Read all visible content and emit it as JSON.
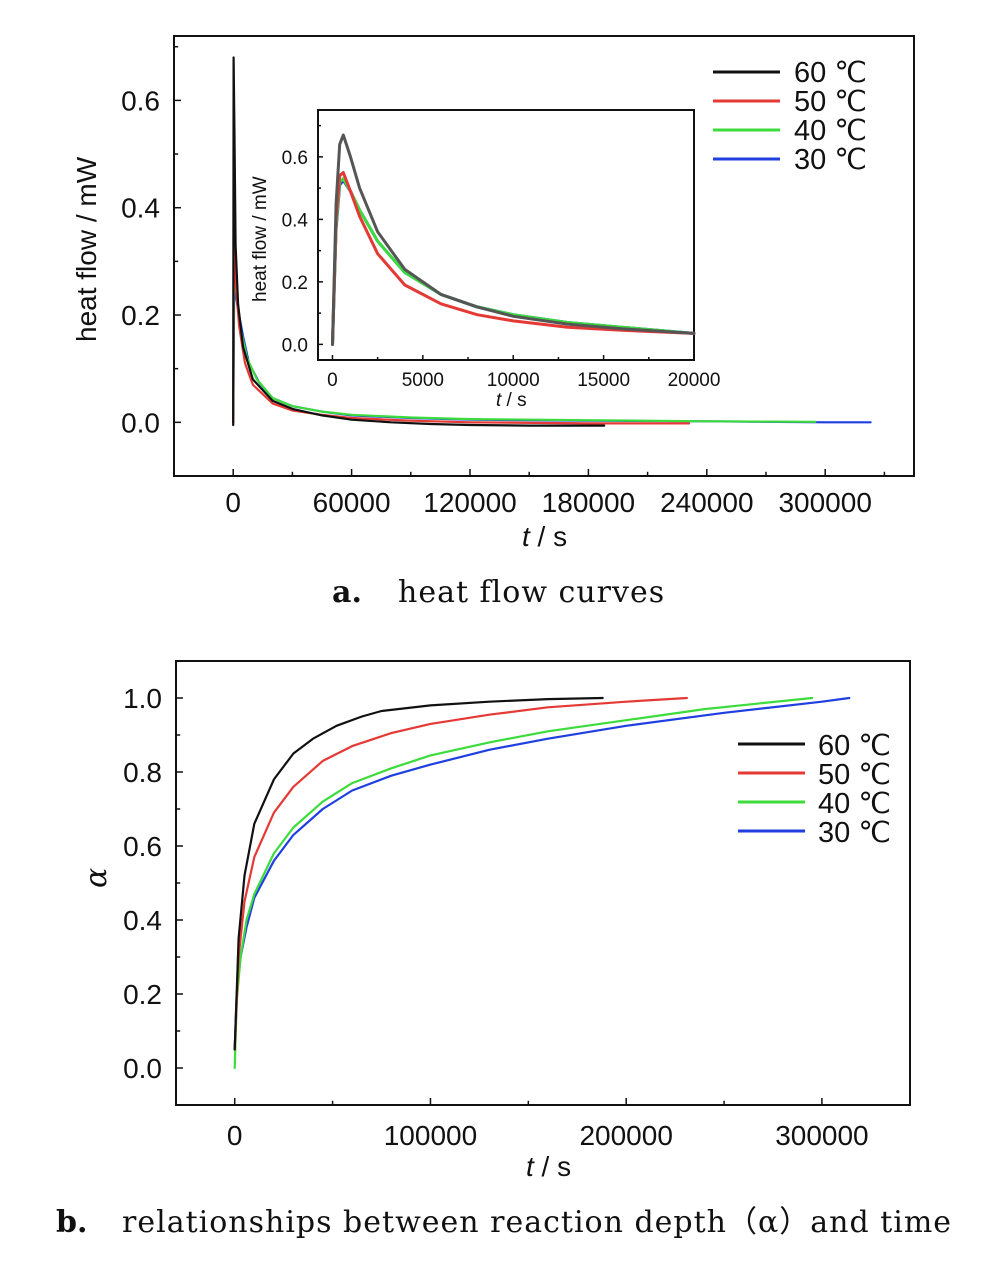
{
  "colors": {
    "s60": "#111111",
    "s50": "#e53935",
    "s40": "#3ddc3d",
    "s30": "#1f3fe0",
    "s60_inset": "#555555"
  },
  "captions": {
    "a_letter": "a.",
    "a_text": "heat flow curves",
    "b_letter": "b.",
    "b_text": "relationships between reaction depth（α）and time"
  },
  "chart_data": [
    {
      "id": "a_main",
      "type": "line",
      "xlabel_var": "t",
      "xlabel_unit": " / s",
      "ylabel": "heat flow / mW",
      "xlim": [
        -30000,
        345000
      ],
      "ylim": [
        -0.1,
        0.72
      ],
      "xticks": [
        "0",
        "60000",
        "120000",
        "180000",
        "240000",
        "300000"
      ],
      "xtick_values": [
        0,
        60000,
        120000,
        180000,
        240000,
        300000
      ],
      "yticks": [
        "0.0",
        "0.2",
        "0.4",
        "0.6"
      ],
      "ytick_values": [
        0.0,
        0.2,
        0.4,
        0.6
      ],
      "legend": {
        "position": "top-right",
        "entries": [
          "60 ℃",
          "50 ℃",
          "40 ℃",
          "30 ℃"
        ]
      },
      "series": [
        {
          "name": "60 ℃",
          "color_key": "s60",
          "x": [
            0,
            200,
            600,
            1200,
            2500,
            5000,
            10000,
            20000,
            30000,
            45000,
            60000,
            80000,
            100000,
            120000,
            150000,
            188000
          ],
          "y": [
            -0.005,
            0.68,
            0.55,
            0.33,
            0.22,
            0.14,
            0.08,
            0.04,
            0.025,
            0.013,
            0.005,
            0.0,
            -0.003,
            -0.005,
            -0.006,
            -0.006
          ]
        },
        {
          "name": "50 ℃",
          "color_key": "s50",
          "x": [
            0,
            300,
            800,
            1500,
            3000,
            6000,
            10000,
            20000,
            30000,
            45000,
            60000,
            90000,
            120000,
            180000,
            231000
          ],
          "y": [
            0.0,
            0.33,
            0.3,
            0.25,
            0.18,
            0.11,
            0.07,
            0.035,
            0.022,
            0.014,
            0.008,
            0.003,
            0.0,
            -0.002,
            -0.002
          ]
        },
        {
          "name": "40 ℃",
          "color_key": "s40",
          "x": [
            0,
            400,
            1000,
            2000,
            4000,
            7000,
            12000,
            20000,
            30000,
            45000,
            60000,
            90000,
            120000,
            180000,
            240000,
            295000
          ],
          "y": [
            0.0,
            0.27,
            0.26,
            0.23,
            0.17,
            0.12,
            0.08,
            0.045,
            0.03,
            0.02,
            0.014,
            0.009,
            0.006,
            0.004,
            0.002,
            0.001
          ]
        },
        {
          "name": "30 ℃",
          "color_key": "s30",
          "x": [
            0,
            500,
            1200,
            2500,
            5000,
            8000,
            13000,
            20000,
            30000,
            45000,
            60000,
            90000,
            120000,
            180000,
            240000,
            300000,
            323000
          ],
          "y": [
            0.0,
            0.25,
            0.24,
            0.21,
            0.16,
            0.11,
            0.075,
            0.045,
            0.03,
            0.02,
            0.013,
            0.008,
            0.005,
            0.003,
            0.002,
            0.0,
            0.0
          ]
        }
      ]
    },
    {
      "id": "a_inset",
      "type": "line",
      "xlabel_var": "t",
      "xlabel_unit": " / s",
      "ylabel": "heat flow / mW",
      "xlim": [
        -800,
        20000
      ],
      "ylim": [
        -0.05,
        0.75
      ],
      "xticks": [
        "0",
        "5000",
        "10000",
        "15000",
        "20000"
      ],
      "xtick_values": [
        0,
        5000,
        10000,
        15000,
        20000
      ],
      "yticks": [
        "0.0",
        "0.2",
        "0.4",
        "0.6"
      ],
      "ytick_values": [
        0.0,
        0.2,
        0.4,
        0.6
      ],
      "series": [
        {
          "name": "60 ℃",
          "color_key": "s60_inset",
          "x": [
            0,
            200,
            400,
            600,
            1000,
            1500,
            2500,
            4000,
            6000,
            8000,
            10000,
            13000,
            16000,
            20000
          ],
          "y": [
            0.0,
            0.45,
            0.64,
            0.67,
            0.6,
            0.5,
            0.36,
            0.24,
            0.16,
            0.12,
            0.09,
            0.065,
            0.05,
            0.035
          ]
        },
        {
          "name": "50 ℃",
          "color_key": "s50",
          "x": [
            0,
            200,
            400,
            600,
            1000,
            1500,
            2500,
            4000,
            6000,
            8000,
            10000,
            13000,
            16000,
            20000
          ],
          "y": [
            0.0,
            0.4,
            0.54,
            0.55,
            0.49,
            0.41,
            0.29,
            0.19,
            0.13,
            0.095,
            0.075,
            0.055,
            0.045,
            0.035
          ]
        },
        {
          "name": "40 ℃",
          "color_key": "s40",
          "x": [
            0,
            200,
            400,
            600,
            1000,
            1500,
            2500,
            4000,
            6000,
            8000,
            10000,
            13000,
            16000,
            20000
          ],
          "y": [
            0.0,
            0.38,
            0.52,
            0.53,
            0.49,
            0.43,
            0.33,
            0.23,
            0.16,
            0.12,
            0.095,
            0.07,
            0.055,
            0.035
          ]
        },
        {
          "name": "30 ℃",
          "color_key": "s30",
          "x": [
            0,
            200,
            400,
            600,
            1000,
            1500,
            2500,
            4000,
            6000,
            8000,
            10000,
            13000,
            16000,
            20000
          ],
          "y": [
            0.0,
            0.37,
            0.51,
            0.525,
            0.49,
            0.43,
            0.33,
            0.23,
            0.16,
            0.12,
            0.095,
            0.07,
            0.055,
            0.035
          ]
        }
      ]
    },
    {
      "id": "b_main",
      "type": "line",
      "xlabel_var": "t",
      "xlabel_unit": " / s",
      "ylabel": "α",
      "xlim": [
        -30000,
        345000
      ],
      "ylim": [
        -0.1,
        1.1
      ],
      "xticks": [
        "0",
        "100000",
        "200000",
        "300000"
      ],
      "xtick_values": [
        0,
        100000,
        200000,
        300000
      ],
      "yticks": [
        "0.0",
        "0.2",
        "0.4",
        "0.6",
        "0.8",
        "1.0"
      ],
      "ytick_values": [
        0.0,
        0.2,
        0.4,
        0.6,
        0.8,
        1.0
      ],
      "legend": {
        "position": "right",
        "entries": [
          "60 ℃",
          "50 ℃",
          "40 ℃",
          "30 ℃"
        ]
      },
      "series": [
        {
          "name": "60 ℃",
          "color_key": "s60",
          "x": [
            0,
            2000,
            5000,
            10000,
            20000,
            30000,
            40000,
            52000,
            65000,
            75000,
            100000,
            130000,
            160000,
            188000
          ],
          "y": [
            0.05,
            0.35,
            0.52,
            0.66,
            0.78,
            0.85,
            0.89,
            0.925,
            0.95,
            0.965,
            0.98,
            0.99,
            0.997,
            1.0
          ]
        },
        {
          "name": "50 ℃",
          "color_key": "s50",
          "x": [
            0,
            2000,
            5000,
            10000,
            20000,
            30000,
            45000,
            60000,
            80000,
            100000,
            130000,
            160000,
            200000,
            231000
          ],
          "y": [
            0.05,
            0.3,
            0.45,
            0.57,
            0.69,
            0.76,
            0.83,
            0.87,
            0.905,
            0.93,
            0.955,
            0.975,
            0.99,
            1.0
          ]
        },
        {
          "name": "40 ℃",
          "color_key": "s40",
          "x": [
            0,
            1000,
            3000,
            6000,
            10000,
            20000,
            30000,
            45000,
            60000,
            80000,
            100000,
            130000,
            160000,
            200000,
            240000,
            295000
          ],
          "y": [
            0.0,
            0.18,
            0.3,
            0.4,
            0.47,
            0.58,
            0.65,
            0.72,
            0.77,
            0.81,
            0.845,
            0.88,
            0.91,
            0.94,
            0.97,
            1.0
          ]
        },
        {
          "name": "30 ℃",
          "color_key": "s30",
          "x": [
            0,
            1000,
            3000,
            6000,
            10000,
            20000,
            30000,
            45000,
            60000,
            80000,
            100000,
            130000,
            160000,
            200000,
            250000,
            300000,
            314000
          ],
          "y": [
            0.05,
            0.2,
            0.3,
            0.38,
            0.46,
            0.56,
            0.63,
            0.7,
            0.75,
            0.79,
            0.82,
            0.86,
            0.89,
            0.925,
            0.96,
            0.99,
            1.0
          ]
        }
      ]
    }
  ]
}
